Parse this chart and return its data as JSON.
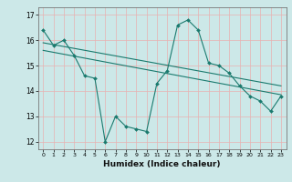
{
  "xlabel": "Humidex (Indice chaleur)",
  "bg_color": "#cce8e8",
  "grid_color": "#e8b0b0",
  "line_color": "#1a7a6e",
  "xlim": [
    -0.5,
    23.5
  ],
  "ylim": [
    11.7,
    17.3
  ],
  "xticks": [
    0,
    1,
    2,
    3,
    4,
    5,
    6,
    7,
    8,
    9,
    10,
    11,
    12,
    13,
    14,
    15,
    16,
    17,
    18,
    19,
    20,
    21,
    22,
    23
  ],
  "yticks": [
    12,
    13,
    14,
    15,
    16,
    17
  ],
  "main_x": [
    0,
    1,
    2,
    3,
    4,
    5,
    6,
    7,
    8,
    9,
    10,
    11,
    12,
    13,
    14,
    15,
    16,
    17,
    18,
    19,
    20,
    21,
    22,
    23
  ],
  "main_y": [
    16.4,
    15.8,
    16.0,
    15.4,
    14.6,
    14.5,
    12.0,
    13.0,
    12.6,
    12.5,
    12.4,
    14.3,
    14.8,
    16.6,
    16.8,
    16.4,
    15.1,
    15.0,
    14.7,
    14.2,
    13.8,
    13.6,
    13.2,
    13.8
  ],
  "trend1_x": [
    0,
    23
  ],
  "trend1_y": [
    15.9,
    14.2
  ],
  "trend2_x": [
    0,
    23
  ],
  "trend2_y": [
    15.6,
    13.85
  ]
}
